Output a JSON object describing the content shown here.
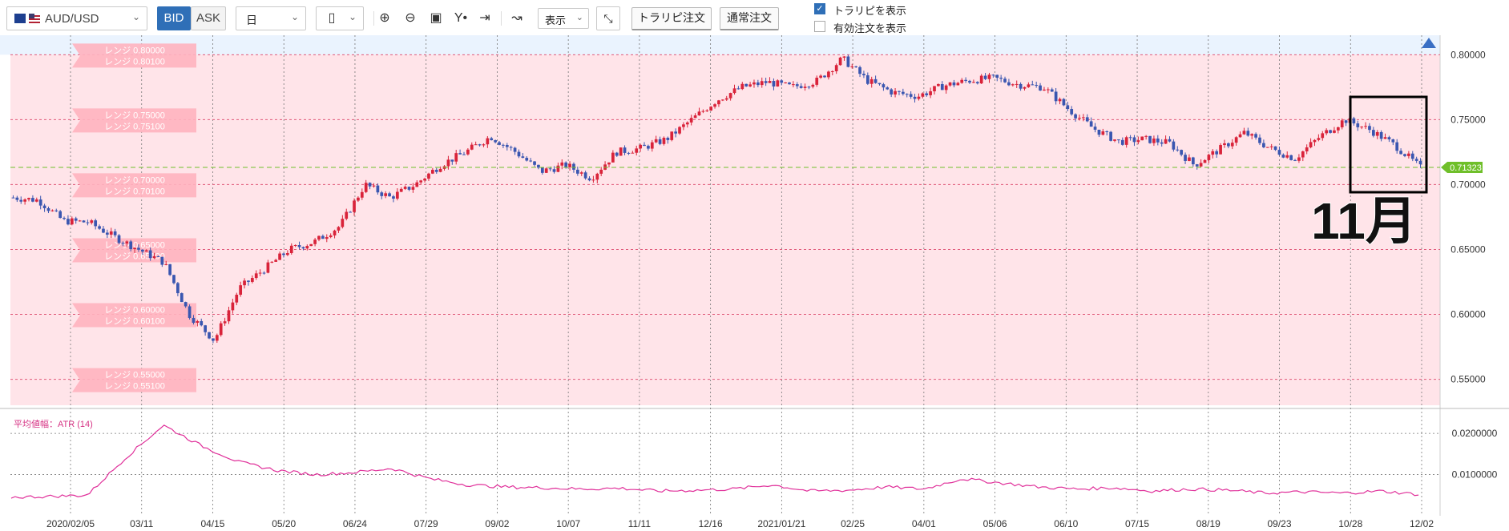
{
  "toolbar": {
    "pair": "AUD/USD",
    "bid": "BID",
    "ask": "ASK",
    "period": "日",
    "display_label": "表示",
    "trap_order_button": "トラリピ注文",
    "normal_order_button": "通常注文",
    "show_trap_label": "トラリピを表示",
    "show_trap_checked": true,
    "show_active_orders_label": "有効注文を表示",
    "show_active_orders_checked": false
  },
  "chart": {
    "current_price": "0.71323",
    "y_ticks": [
      "0.80000",
      "0.75000",
      "0.70000",
      "0.65000",
      "0.60000",
      "0.55000"
    ],
    "x_dates": [
      "2020/02/05",
      "03/11",
      "04/15",
      "05/20",
      "06/24",
      "07/29",
      "09/02",
      "10/07",
      "11/11",
      "12/16",
      "2021/01/21",
      "02/25",
      "04/01",
      "05/06",
      "06/10",
      "07/15",
      "08/19",
      "09/23",
      "10/28",
      "12/02"
    ],
    "range_labels": [
      [
        "レンジ 0.80000",
        "レンジ 0.80100"
      ],
      [
        "レンジ 0.75000",
        "レンジ 0.75100"
      ],
      [
        "レンジ 0.70000",
        "レンジ 0.70100"
      ],
      [
        "レンジ 0.65000",
        "レンジ 0.65100"
      ],
      [
        "レンジ 0.60000",
        "レンジ 0.60100"
      ],
      [
        "レンジ 0.55000",
        "レンジ 0.55100"
      ]
    ],
    "annotation": "11月",
    "indicator_label": "平均値幅：ATR (14)",
    "indicator_ticks": [
      "0.0200000",
      "0.0100000"
    ]
  },
  "chart_data": {
    "type": "line",
    "title": "",
    "series": [
      {
        "name": "",
        "values": [
          0.69,
          0.688,
          0.672,
          0.671,
          0.66,
          0.65,
          0.64,
          0.6,
          0.58,
          0.62,
          0.635,
          0.65,
          0.656,
          0.668,
          0.7,
          0.69,
          0.7,
          0.715,
          0.725,
          0.737,
          0.725,
          0.71,
          0.715,
          0.705,
          0.725,
          0.728,
          0.735,
          0.75,
          0.765,
          0.775,
          0.779,
          0.775,
          0.78,
          0.797,
          0.78,
          0.771,
          0.768,
          0.776,
          0.78,
          0.782,
          0.777,
          0.775,
          0.758,
          0.743,
          0.733,
          0.735,
          0.732,
          0.715,
          0.727,
          0.74,
          0.728,
          0.72,
          0.737,
          0.75,
          0.742,
          0.73,
          0.713
        ]
      },
      {
        "name": "平均値幅：ATR (14)",
        "values": [
          0.0045,
          0.0047,
          0.005,
          0.014,
          0.022,
          0.017,
          0.013,
          0.011,
          0.01,
          0.0105,
          0.0115,
          0.009,
          0.0075,
          0.007,
          0.0068,
          0.0065,
          0.0067,
          0.006,
          0.0062,
          0.0065,
          0.0075,
          0.006,
          0.0062,
          0.007,
          0.0065,
          0.009,
          0.008,
          0.007,
          0.0065,
          0.0068,
          0.006,
          0.0065,
          0.0062,
          0.0055,
          0.0058,
          0.0055,
          0.006,
          0.0052
        ]
      }
    ],
    "x_tick_labels": [
      "2020/02/05",
      "03/11",
      "04/15",
      "05/20",
      "06/24",
      "07/29",
      "09/02",
      "10/07",
      "11/11",
      "12/16",
      "2021/01/21",
      "02/25",
      "04/01",
      "05/06",
      "06/10",
      "07/15",
      "08/19",
      "09/23",
      "10/28",
      "12/02"
    ],
    "ylim": [
      0.53,
      0.815
    ],
    "y2lim": [
      0.0,
      0.0245
    ],
    "grid": true,
    "colors": {
      "up": "#d9233a",
      "down": "#3a56b0",
      "atr": "#e0309a",
      "current": "#6fbf2a",
      "range_band": "#ffe4e9"
    }
  }
}
